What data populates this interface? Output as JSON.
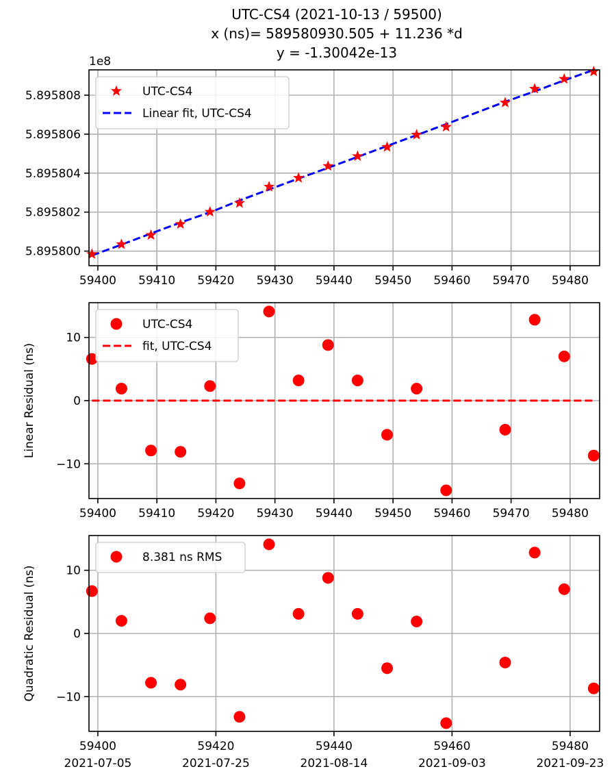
{
  "figure": {
    "title_lines": [
      "UTC-CS4 (2021-10-13 / 59500)",
      "x (ns)= 589580930.505 + 11.236 *d",
      "y = -1.30042e-13"
    ]
  },
  "colors": {
    "points": "#ff0000",
    "fit_blue": "#0000ff",
    "fit_red": "#ff0000",
    "grid": "#b0b0b0"
  },
  "chart_data": [
    {
      "type": "scatter",
      "name": "top",
      "offset_label": "1e8",
      "x": [
        59399,
        59404,
        59409,
        59414,
        59419,
        59424,
        59429,
        59434,
        59439,
        59444,
        59449,
        59454,
        59459,
        59469,
        59474,
        59479,
        59484
      ],
      "xlim": [
        59398.5,
        59485
      ],
      "ylim": [
        589579925,
        589580930
      ],
      "x_ticks": [
        59400,
        59410,
        59420,
        59430,
        59440,
        59450,
        59460,
        59470,
        59480
      ],
      "y_ticks": [
        589580000,
        589580200,
        589580400,
        589580600,
        589580800
      ],
      "y_tick_labels": [
        "5.895800",
        "5.895802",
        "5.895804",
        "5.895806",
        "5.895808"
      ],
      "grid": true,
      "legend_position": "top-left",
      "series": [
        {
          "name": "UTC-CS4",
          "marker": "star",
          "values": [
            589579984.3,
            589580034.9,
            589580082.3,
            589580138.6,
            589580201.1,
            589580246.6,
            589580330.2,
            589580375.4,
            589580436.1,
            589580486.6,
            589580534.0,
            589580596.9,
            589580637.2,
            589580761.7,
            589580832.6,
            589580883.1,
            589580921.1
          ]
        },
        {
          "name": "Linear fit, UTC-CS4",
          "style": "dashed",
          "color": "blue",
          "values": [
            589579977.7,
            589580033.0,
            589580090.2,
            589580146.7,
            589580198.8,
            589580259.7,
            589580316.1,
            589580372.2,
            589580427.3,
            589580483.4,
            589580539.4,
            589580595.0,
            589580651.4,
            589580766.3,
            589580819.8,
            589580876.1,
            589580929.8
          ]
        }
      ]
    },
    {
      "type": "scatter",
      "name": "middle",
      "ylabel": "Linear Residual (ns)",
      "x": [
        59399,
        59404,
        59409,
        59414,
        59419,
        59424,
        59429,
        59434,
        59439,
        59444,
        59449,
        59454,
        59459,
        59469,
        59474,
        59479,
        59484
      ],
      "xlim": [
        59398.5,
        59485
      ],
      "ylim": [
        -15.5,
        15.5
      ],
      "x_ticks": [
        59400,
        59410,
        59420,
        59430,
        59440,
        59450,
        59460,
        59470,
        59480
      ],
      "y_ticks": [
        10,
        0,
        -10
      ],
      "y_tick_labels": [
        "10",
        "0",
        "−10"
      ],
      "grid": true,
      "legend_position": "top-left",
      "series": [
        {
          "name": "UTC-CS4",
          "marker": "circle",
          "values": [
            6.6,
            1.9,
            -7.9,
            -8.1,
            2.3,
            -13.1,
            14.1,
            3.2,
            8.8,
            3.2,
            -5.4,
            1.9,
            -14.2,
            -4.6,
            12.8,
            7.0,
            -8.7
          ]
        },
        {
          "name": "fit, UTC-CS4",
          "style": "dashed",
          "color": "red",
          "values": [
            0,
            0,
            0,
            0,
            0,
            0,
            0,
            0,
            0,
            0,
            0,
            0,
            0,
            0,
            0,
            0,
            0
          ]
        }
      ]
    },
    {
      "type": "scatter",
      "name": "bottom",
      "ylabel": "Quadratic Residual (ns)",
      "x": [
        59399,
        59404,
        59409,
        59414,
        59419,
        59424,
        59429,
        59434,
        59439,
        59444,
        59449,
        59454,
        59459,
        59469,
        59474,
        59479,
        59484
      ],
      "xlim": [
        59398.5,
        59485
      ],
      "ylim": [
        -15.5,
        15.5
      ],
      "x_ticks": [
        59400,
        59420,
        59440,
        59460,
        59480
      ],
      "x_tick_dates": [
        "2021-07-05",
        "2021-07-25",
        "2021-08-14",
        "2021-09-03",
        "2021-09-23"
      ],
      "y_ticks": [
        10,
        0,
        -10
      ],
      "y_tick_labels": [
        "10",
        "0",
        "−10"
      ],
      "grid": true,
      "legend_position": "top-left",
      "series": [
        {
          "name": "8.381 ns RMS",
          "marker": "circle",
          "values": [
            6.7,
            2.0,
            -7.8,
            -8.1,
            2.4,
            -13.2,
            14.1,
            3.1,
            8.8,
            3.1,
            -5.5,
            1.9,
            -14.2,
            -4.6,
            12.8,
            7.0,
            -8.7
          ]
        }
      ]
    }
  ]
}
